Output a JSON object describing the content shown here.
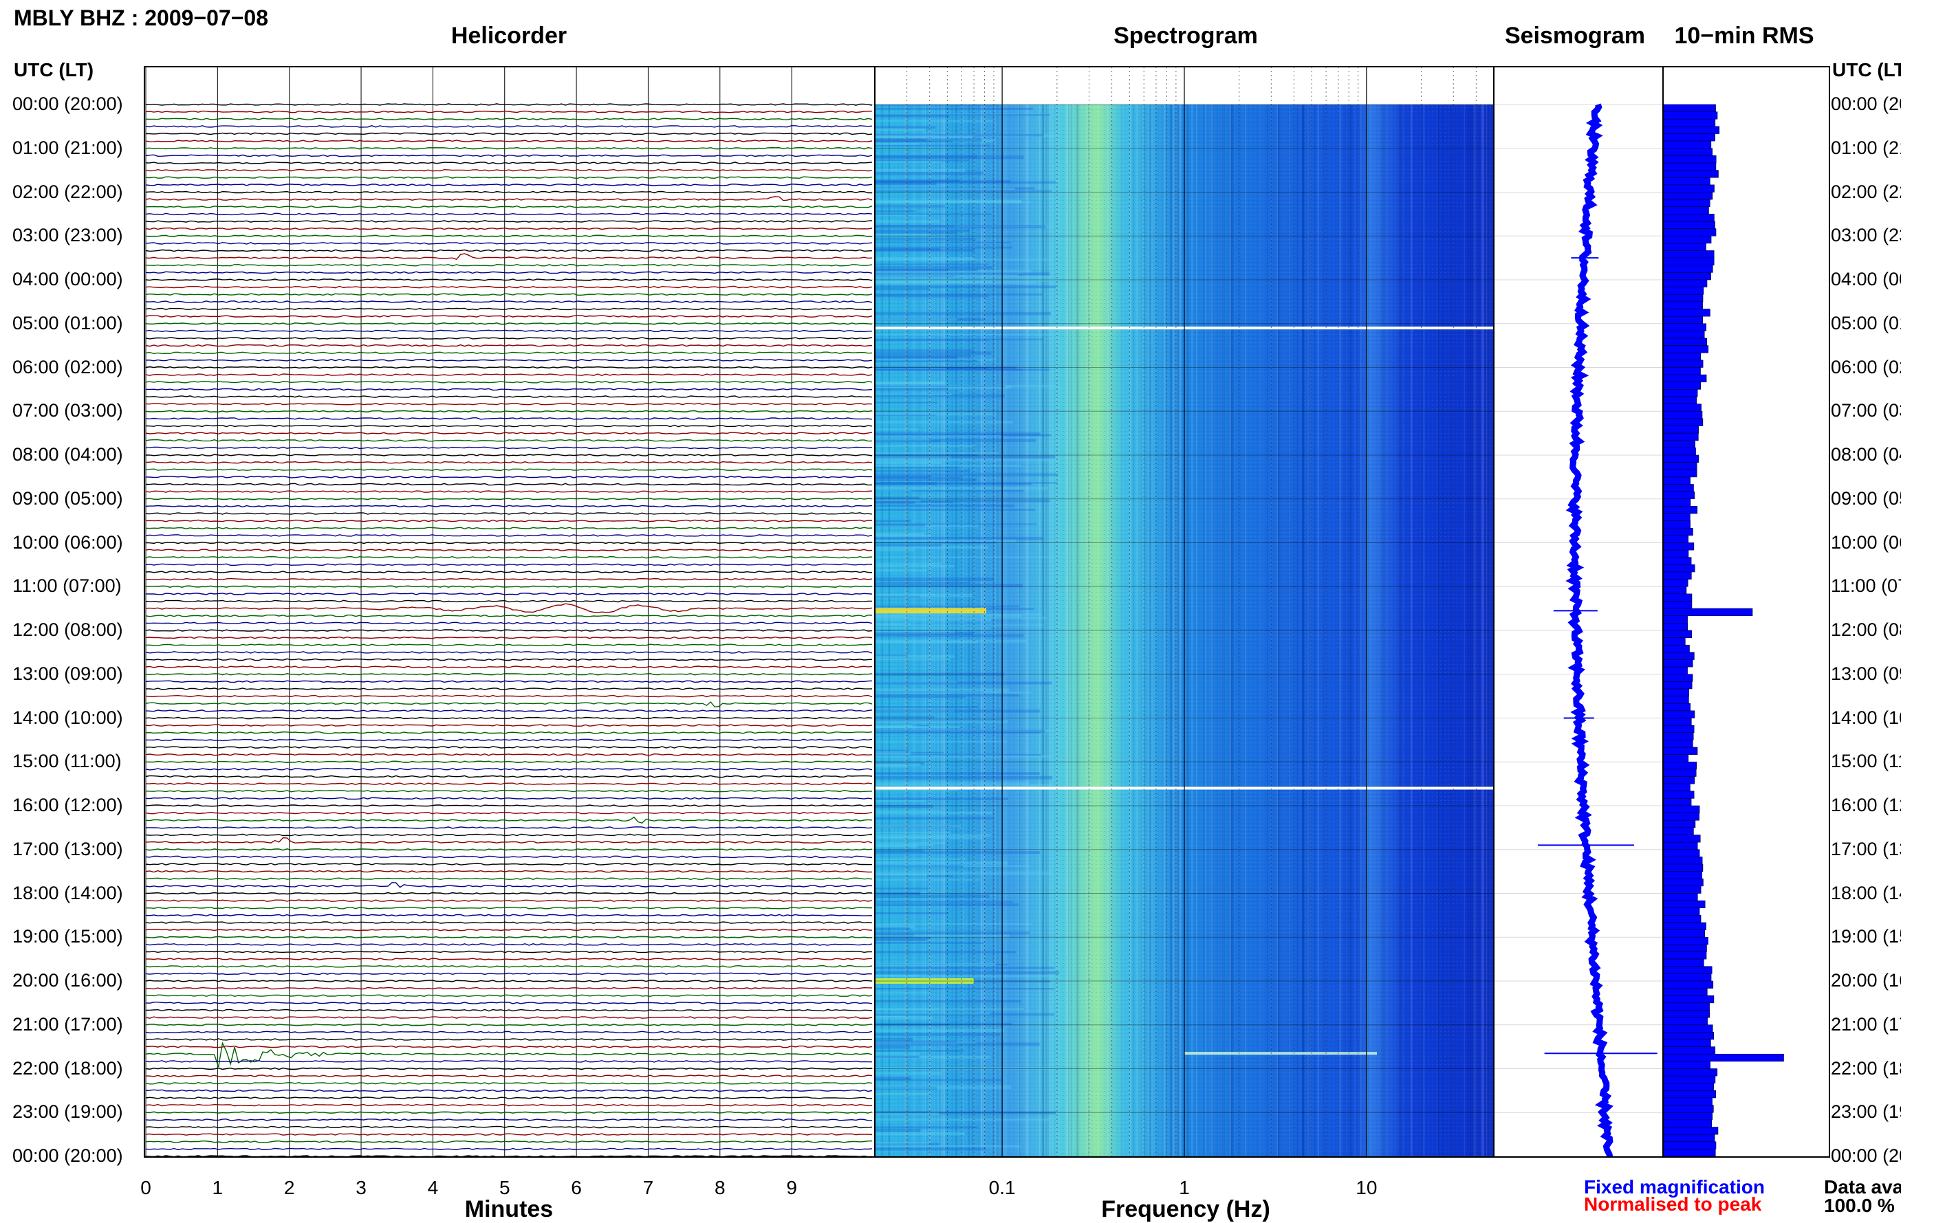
{
  "station_header": "MBLY BHZ : 2009−07−08",
  "panels": {
    "helicorder_title": "Helicorder",
    "spectrogram_title": "Spectrogram",
    "seismogram_title": "Seismogram",
    "rms_title": "10−min RMS"
  },
  "axis_left_header": "UTC (LT)",
  "axis_right_header": "UTC (LT)",
  "hour_labels": [
    "00:00 (20:00)",
    "01:00 (21:00)",
    "02:00 (22:00)",
    "03:00 (23:00)",
    "04:00 (00:00)",
    "05:00 (01:00)",
    "06:00 (02:00)",
    "07:00 (03:00)",
    "08:00 (04:00)",
    "09:00 (05:00)",
    "10:00 (06:00)",
    "11:00 (07:00)",
    "12:00 (08:00)",
    "13:00 (09:00)",
    "14:00 (10:00)",
    "15:00 (11:00)",
    "16:00 (12:00)",
    "17:00 (13:00)",
    "18:00 (14:00)",
    "19:00 (15:00)",
    "20:00 (16:00)",
    "21:00 (17:00)",
    "22:00 (18:00)",
    "23:00 (19:00)",
    "00:00 (20:00)"
  ],
  "helicorder_xlabel": "Minutes",
  "helicorder_ticks": [
    "0",
    "1",
    "2",
    "3",
    "4",
    "5",
    "6",
    "7",
    "8",
    "9"
  ],
  "spectrogram_xlabel": "Frequency (Hz)",
  "spectrogram_ticks": [
    "0.1",
    "1",
    "10"
  ],
  "legend": {
    "fixed": "Fixed magnification",
    "normalised": "Normalised to peak"
  },
  "data_availability_label": "Data available",
  "data_availability_value": "100.0 %",
  "colors": {
    "trace_cycle": [
      "#000000",
      "#8b0000",
      "#006400",
      "#00008b"
    ],
    "fixed_color": "#0000ff",
    "normalised_color": "#ff0000"
  },
  "chart_data": [
    {
      "type": "line",
      "title": "Helicorder",
      "xlabel": "Minutes",
      "ylabel": "UTC (LT)",
      "x_range": [
        0,
        10
      ],
      "lines_per_hour": 6,
      "hours": 24,
      "events": [
        {
          "hour": 2.2,
          "minute": 8.8,
          "note": "small spike"
        },
        {
          "hour": 3.5,
          "minute": 4.4,
          "note": "small spike"
        },
        {
          "hour": 11.5,
          "minute": 6.1,
          "note": "long-period wave train"
        },
        {
          "hour": 13.6,
          "minute": 7.9,
          "note": "small spike"
        },
        {
          "hour": 16.4,
          "minute": 6.9,
          "note": "small spike"
        },
        {
          "hour": 16.9,
          "minute": 1.9,
          "note": "small spike"
        },
        {
          "hour": 17.9,
          "minute": 3.5,
          "note": "small spike"
        },
        {
          "hour": 21.6,
          "minute": 1.0,
          "note": "earthquake"
        }
      ]
    },
    {
      "type": "heatmap",
      "title": "Spectrogram",
      "xlabel": "Frequency (Hz)",
      "x_scale": "log",
      "x_range": [
        0.02,
        50
      ],
      "gaps_hours": [
        5.1,
        15.6
      ]
    },
    {
      "type": "line",
      "title": "Seismogram",
      "note": "daily trace, fixed magnification"
    },
    {
      "type": "bar",
      "title": "10−min RMS",
      "orientation": "horizontal",
      "bins_per_hour": 6,
      "hours": 24,
      "peak_bins": [
        {
          "hour": 11.5,
          "relative": 1.0
        },
        {
          "hour": 21.6,
          "relative": 1.35
        }
      ]
    }
  ]
}
